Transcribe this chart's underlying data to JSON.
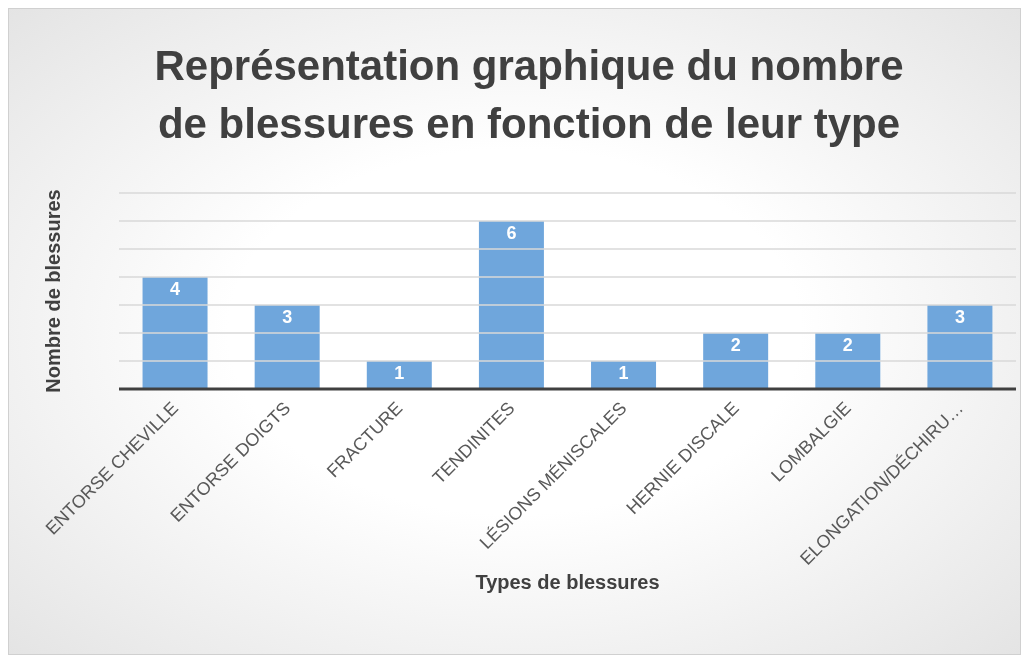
{
  "chart_data": {
    "type": "bar",
    "title": "Représentation graphique du nombre de blessures en fonction de leur type",
    "xlabel": "Types de blessures",
    "ylabel": "Nombre de blessures",
    "categories": [
      "ENTORSE CHEVILLE",
      "ENTORSE DOIGTS",
      "FRACTURE",
      "TENDINITES",
      "LÉSIONS MÉNISCALES",
      "HERNIE DISCALE",
      "LOMBALGIE",
      "ELONGATION/DÉCHIRU…"
    ],
    "values": [
      4,
      3,
      1,
      6,
      1,
      2,
      2,
      3
    ],
    "color": "#6fa6dc",
    "ylim": [
      0,
      7
    ],
    "yticks": [
      0,
      1,
      2,
      3,
      4,
      5,
      6,
      7
    ],
    "grid": "y",
    "tick_labels": "x",
    "data_labels": true,
    "legend": false
  }
}
